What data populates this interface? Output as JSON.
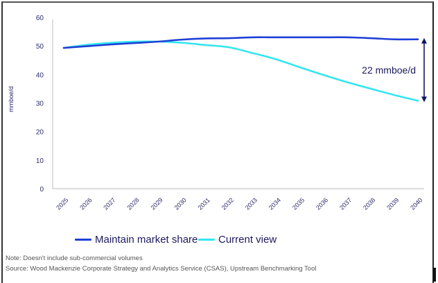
{
  "chart_data": {
    "type": "line",
    "title": "",
    "xlabel": "",
    "ylabel": "mmboe/d",
    "ylim": [
      0,
      60
    ],
    "yticks": [
      0,
      10,
      20,
      30,
      40,
      50,
      60
    ],
    "x": [
      "2025",
      "2026",
      "2027",
      "2028",
      "2029",
      "2030",
      "2031",
      "2032",
      "2033",
      "2034",
      "2035",
      "2036",
      "2037",
      "2038",
      "2039",
      "2040"
    ],
    "grid": false,
    "legend_position": "bottom",
    "series": [
      {
        "name": "Maintain market share",
        "color": "#1f3fd6",
        "values": [
          49.3,
          49.9,
          50.5,
          51.0,
          51.5,
          52.2,
          52.6,
          52.7,
          53.0,
          53.0,
          53.0,
          53.0,
          53.0,
          52.7,
          52.3,
          52.3
        ]
      },
      {
        "name": "Current view",
        "color": "#33e6f0",
        "values": [
          49.3,
          50.4,
          51.1,
          51.5,
          51.5,
          51.1,
          50.3,
          49.5,
          47.5,
          45.3,
          42.5,
          39.8,
          37.3,
          35.0,
          32.8,
          30.8
        ]
      }
    ],
    "annotations": [
      {
        "text": "22 mmboe/d",
        "type": "double-arrow",
        "x": "2040",
        "from": 52.3,
        "to": 30.8,
        "color": "#0d1a5e"
      }
    ]
  },
  "legend": {
    "items": [
      {
        "label": "Maintain market share",
        "color": "#1f3fd6"
      },
      {
        "label": "Current view",
        "color": "#33e6f0"
      }
    ]
  },
  "footer": {
    "note": "Note: Doesn't include sub-commercial volumes",
    "source": "Source: Wood Mackenzie Corporate Strategy and Analytics Service (CSAS), Upstream Benchmarking Tool"
  }
}
